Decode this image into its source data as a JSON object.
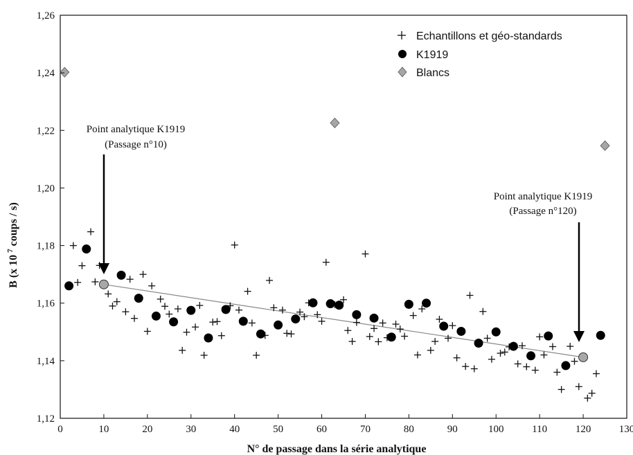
{
  "chart_data": {
    "type": "scatter",
    "title": "",
    "xlabel": "N° de passage dans la série analytique",
    "ylabel_parts": [
      "B (x 10",
      "7",
      " coups / s)"
    ],
    "xlim": [
      0,
      130
    ],
    "ylim": [
      1.12,
      1.26
    ],
    "x_ticks": [
      0,
      10,
      20,
      30,
      40,
      50,
      60,
      70,
      80,
      90,
      100,
      110,
      120,
      130
    ],
    "x_tick_labels": [
      "0",
      "10",
      "20",
      "30",
      "40",
      "50",
      "60",
      "70",
      "80",
      "90",
      "100",
      "110",
      "120",
      "130"
    ],
    "y_ticks": [
      1.12,
      1.14,
      1.16,
      1.18,
      1.2,
      1.22,
      1.24,
      1.26
    ],
    "y_tick_labels": [
      "1,12",
      "1,14",
      "1,16",
      "1,18",
      "1,20",
      "1,22",
      "1,24",
      "1,26"
    ],
    "grid": false,
    "legend_position": "top-right",
    "series": [
      {
        "name": "Echantillons et géo-standards",
        "marker": "plus",
        "color": "#111111",
        "points": [
          [
            3,
            1.18
          ],
          [
            4,
            1.1672
          ],
          [
            5,
            1.173
          ],
          [
            7,
            1.1848
          ],
          [
            8,
            1.1674
          ],
          [
            9,
            1.1731
          ],
          [
            11,
            1.1632
          ],
          [
            12,
            1.159
          ],
          [
            13,
            1.1605
          ],
          [
            15,
            1.157
          ],
          [
            16,
            1.1683
          ],
          [
            17,
            1.1547
          ],
          [
            19,
            1.17
          ],
          [
            20,
            1.1502
          ],
          [
            21,
            1.166
          ],
          [
            23,
            1.1614
          ],
          [
            24,
            1.1589
          ],
          [
            25,
            1.1562
          ],
          [
            27,
            1.158
          ],
          [
            28,
            1.1436
          ],
          [
            29,
            1.1499
          ],
          [
            31,
            1.1517
          ],
          [
            32,
            1.1592
          ],
          [
            33,
            1.1419
          ],
          [
            35,
            1.1534
          ],
          [
            36,
            1.1536
          ],
          [
            37,
            1.1487
          ],
          [
            39,
            1.1591
          ],
          [
            40,
            1.1802
          ],
          [
            41,
            1.1576
          ],
          [
            43,
            1.1641
          ],
          [
            44,
            1.1531
          ],
          [
            45,
            1.1419
          ],
          [
            47,
            1.1488
          ],
          [
            48,
            1.1679
          ],
          [
            49,
            1.1584
          ],
          [
            51,
            1.1576
          ],
          [
            52,
            1.1495
          ],
          [
            53,
            1.1493
          ],
          [
            55,
            1.1569
          ],
          [
            56,
            1.1553
          ],
          [
            57,
            1.1601
          ],
          [
            59,
            1.156
          ],
          [
            60,
            1.1537
          ],
          [
            61,
            1.1742
          ],
          [
            63,
            1.1595
          ],
          [
            64,
            1.1594
          ],
          [
            65,
            1.1612
          ],
          [
            66,
            1.1505
          ],
          [
            67,
            1.1467
          ],
          [
            68,
            1.1533
          ],
          [
            70,
            1.1771
          ],
          [
            71,
            1.1484
          ],
          [
            72,
            1.1512
          ],
          [
            73,
            1.1466
          ],
          [
            74,
            1.1531
          ],
          [
            75,
            1.148
          ],
          [
            77,
            1.1527
          ],
          [
            78,
            1.151
          ],
          [
            79,
            1.1485
          ],
          [
            81,
            1.1557
          ],
          [
            82,
            1.142
          ],
          [
            83,
            1.158
          ],
          [
            85,
            1.1436
          ],
          [
            86,
            1.1467
          ],
          [
            87,
            1.1544
          ],
          [
            89,
            1.1478
          ],
          [
            90,
            1.1522
          ],
          [
            91,
            1.141
          ],
          [
            93,
            1.138
          ],
          [
            94,
            1.1627
          ],
          [
            95,
            1.1372
          ],
          [
            97,
            1.1571
          ],
          [
            98,
            1.1478
          ],
          [
            99,
            1.1405
          ],
          [
            101,
            1.1426
          ],
          [
            102,
            1.143
          ],
          [
            103,
            1.1448
          ],
          [
            105,
            1.1389
          ],
          [
            106,
            1.1452
          ],
          [
            107,
            1.1379
          ],
          [
            109,
            1.1367
          ],
          [
            110,
            1.1483
          ],
          [
            111,
            1.142
          ],
          [
            113,
            1.1449
          ],
          [
            114,
            1.136
          ],
          [
            115,
            1.13
          ],
          [
            117,
            1.145
          ],
          [
            118,
            1.1398
          ],
          [
            119,
            1.131
          ],
          [
            121,
            1.127
          ],
          [
            122,
            1.1287
          ],
          [
            123,
            1.1355
          ]
        ]
      },
      {
        "name": "K1919",
        "marker": "circle",
        "color": "#000000",
        "points": [
          [
            2,
            1.166
          ],
          [
            6,
            1.1788
          ],
          [
            14,
            1.1697
          ],
          [
            18,
            1.1617
          ],
          [
            22,
            1.1555
          ],
          [
            26,
            1.1535
          ],
          [
            30,
            1.1575
          ],
          [
            34,
            1.1479
          ],
          [
            38,
            1.1578
          ],
          [
            42,
            1.1537
          ],
          [
            46,
            1.1493
          ],
          [
            50,
            1.1524
          ],
          [
            54,
            1.1545
          ],
          [
            58,
            1.1601
          ],
          [
            62,
            1.1598
          ],
          [
            64,
            1.1593
          ],
          [
            68,
            1.156
          ],
          [
            72,
            1.1548
          ],
          [
            76,
            1.1482
          ],
          [
            80,
            1.1596
          ],
          [
            84,
            1.16
          ],
          [
            88,
            1.152
          ],
          [
            92,
            1.1502
          ],
          [
            96,
            1.1461
          ],
          [
            100,
            1.15
          ],
          [
            104,
            1.145
          ],
          [
            108,
            1.1417
          ],
          [
            112,
            1.1486
          ],
          [
            116,
            1.1383
          ],
          [
            124,
            1.1488
          ]
        ]
      },
      {
        "name": "Blancs",
        "marker": "diamond",
        "color": "#a6a6a6",
        "points": [
          [
            1,
            1.2402
          ],
          [
            63,
            1.2226
          ],
          [
            125,
            1.2147
          ]
        ]
      }
    ],
    "reference_points": [
      [
        10,
        1.1665
      ],
      [
        120,
        1.1412
      ]
    ],
    "regression_line": [
      [
        10,
        1.1665
      ],
      [
        120,
        1.1412
      ]
    ],
    "annotations": [
      {
        "lines": [
          "Point analytique K1919",
          "(Passage n°10)"
        ],
        "x": 10,
        "y": 1.1665
      },
      {
        "lines": [
          "Point analytique K1919",
          "(Passage n°120)"
        ],
        "x": 120,
        "y": 1.1412
      }
    ]
  }
}
